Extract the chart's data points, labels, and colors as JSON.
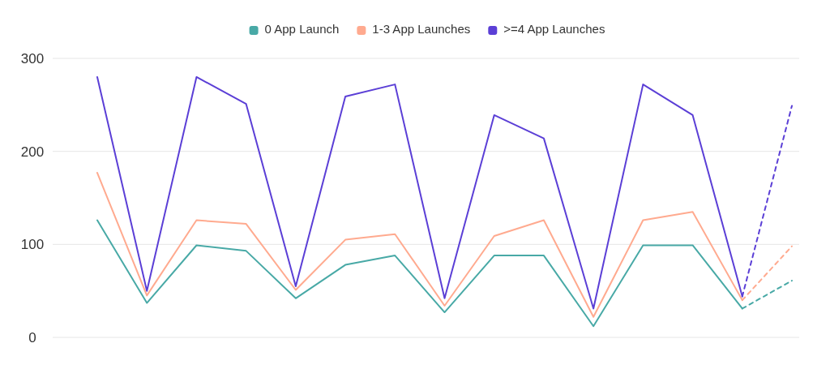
{
  "chart_data": {
    "type": "line",
    "categories": [
      null,
      null,
      null,
      null,
      null,
      null,
      null,
      null,
      null,
      null,
      null,
      null,
      null,
      null,
      null
    ],
    "series": [
      {
        "name": "0 App Launch",
        "color": "#48a9a6",
        "values": [
          126,
          37,
          99,
          93,
          42,
          78,
          88,
          27,
          88,
          88,
          12,
          99,
          99,
          31,
          null
        ]
      },
      {
        "name": "1-3 App Launches",
        "color": "#ffaa8f",
        "values": [
          177,
          45,
          126,
          122,
          51,
          105,
          111,
          34,
          109,
          126,
          22,
          126,
          135,
          40,
          null
        ]
      },
      {
        "name": ">=4 App Launches",
        "color": "#5b3fd6",
        "values": [
          280,
          50,
          280,
          251,
          55,
          259,
          272,
          42,
          239,
          214,
          31,
          272,
          239,
          44,
          null
        ]
      },
      {
        "color": "#48a9a6",
        "line_style": "dashed",
        "values": [
          null,
          null,
          null,
          null,
          null,
          null,
          null,
          null,
          null,
          null,
          null,
          null,
          null,
          31,
          61
        ]
      },
      {
        "color": "#ffaa8f",
        "line_style": "dashed",
        "values": [
          null,
          null,
          null,
          null,
          null,
          null,
          null,
          null,
          null,
          null,
          null,
          null,
          null,
          40,
          98
        ]
      },
      {
        "color": "#5b3fd6",
        "line_style": "dashed",
        "values": [
          null,
          null,
          null,
          null,
          null,
          null,
          null,
          null,
          null,
          null,
          null,
          null,
          null,
          44,
          249
        ]
      }
    ],
    "ylim": [
      0,
      300
    ],
    "yticks": [
      0,
      100,
      200,
      300
    ],
    "grid": "y",
    "legend": "top",
    "marker": "none",
    "line_style": "solid"
  }
}
